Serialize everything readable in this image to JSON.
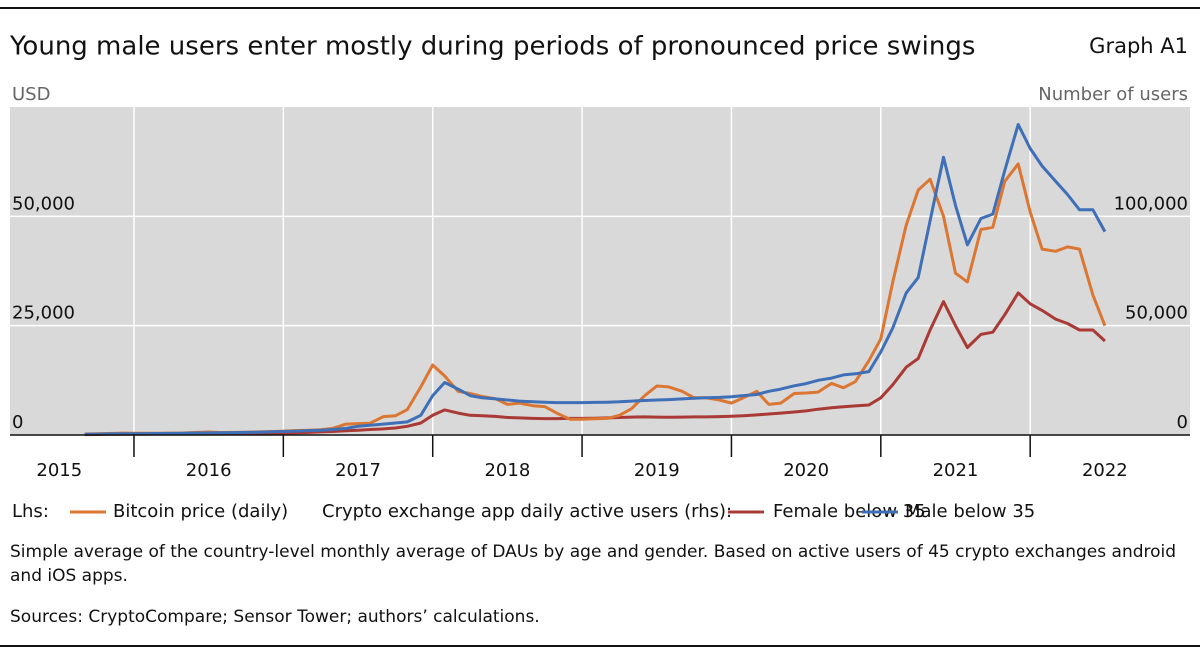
{
  "chart_data": {
    "type": "line",
    "title": "Young male users enter mostly during periods of pronounced price swings",
    "graph_label": "Graph A1",
    "y_label": "USD",
    "y2_label": "Number of users",
    "legend_lhs_label": "Lhs:",
    "legend_rhs_label": "Crypto exchange app daily active users (rhs):",
    "note": "Simple average of the country-level monthly average of DAUs by age and gender. Based on active users of 45 crypto exchanges android and iOS apps.",
    "sources": "Sources: CryptoCompare; Sensor Tower; authors’ calculations.",
    "x": [
      2015.67,
      2015.75,
      2015.83,
      2015.92,
      2016.0,
      2016.08,
      2016.17,
      2016.25,
      2016.33,
      2016.42,
      2016.5,
      2016.58,
      2016.67,
      2016.75,
      2016.83,
      2016.92,
      2017.0,
      2017.08,
      2017.17,
      2017.25,
      2017.33,
      2017.42,
      2017.5,
      2017.58,
      2017.67,
      2017.75,
      2017.83,
      2017.92,
      2018.0,
      2018.08,
      2018.17,
      2018.25,
      2018.33,
      2018.42,
      2018.5,
      2018.58,
      2018.67,
      2018.75,
      2018.83,
      2018.92,
      2019.0,
      2019.08,
      2019.17,
      2019.25,
      2019.33,
      2019.42,
      2019.5,
      2019.58,
      2019.67,
      2019.75,
      2019.83,
      2019.92,
      2020.0,
      2020.08,
      2020.17,
      2020.25,
      2020.33,
      2020.42,
      2020.5,
      2020.58,
      2020.67,
      2020.75,
      2020.83,
      2020.92,
      2021.0,
      2021.08,
      2021.17,
      2021.25,
      2021.33,
      2021.42,
      2021.5,
      2021.58,
      2021.67,
      2021.75,
      2021.83,
      2021.92,
      2022.0,
      2022.08,
      2022.17,
      2022.25,
      2022.33,
      2022.42,
      2022.5
    ],
    "xlim": [
      2015.17,
      2023.07
    ],
    "xticks": [
      {
        "value": 2015.5,
        "label": "2015"
      },
      {
        "value": 2016.5,
        "label": "2016"
      },
      {
        "value": 2017.5,
        "label": "2017"
      },
      {
        "value": 2018.5,
        "label": "2018"
      },
      {
        "value": 2019.5,
        "label": "2019"
      },
      {
        "value": 2020.5,
        "label": "2020"
      },
      {
        "value": 2021.5,
        "label": "2021"
      },
      {
        "value": 2022.5,
        "label": "2022"
      }
    ],
    "xgrid": [
      2016,
      2017,
      2018,
      2019,
      2020,
      2021,
      2022
    ],
    "ylim": [
      0,
      75000
    ],
    "yticks": [
      0,
      {
        "value": 25000,
        "label": "25,000"
      },
      {
        "value": 50000,
        "label": "50,000"
      }
    ],
    "y2lim": [
      0,
      150000
    ],
    "y2ticks": [
      0,
      {
        "value": 50000,
        "label": "50,000"
      },
      {
        "value": 100000,
        "label": "100,000"
      }
    ],
    "grid": true,
    "series": [
      {
        "name": "Bitcoin price (daily)",
        "color": "#dc7633",
        "values": [
          230,
          270,
          350,
          430,
          410,
          400,
          410,
          430,
          450,
          600,
          680,
          580,
          600,
          640,
          710,
          780,
          900,
          1000,
          1100,
          1200,
          1500,
          2500,
          2600,
          2700,
          4200,
          4400,
          5800,
          11000,
          16000,
          13500,
          10000,
          9500,
          8800,
          8300,
          7000,
          7300,
          6700,
          6500,
          5000,
          3600,
          3600,
          3700,
          3800,
          4500,
          6000,
          9000,
          11200,
          11000,
          10000,
          8500,
          8500,
          8000,
          7300,
          8500,
          10000,
          7000,
          7300,
          9500,
          9600,
          9800,
          11800,
          10800,
          12200,
          17000,
          22000,
          35000,
          48000,
          56000,
          58500,
          50000,
          37000,
          35000,
          47000,
          47500,
          58000,
          62000,
          51000,
          42500,
          42000,
          43000,
          42500,
          32000,
          25000
        ]
      },
      {
        "name": "Female below 35",
        "color": "#a93a36",
        "axis": "y2",
        "values": [
          200,
          250,
          300,
          350,
          400,
          420,
          450,
          480,
          500,
          550,
          580,
          600,
          650,
          700,
          750,
          800,
          900,
          1000,
          1200,
          1400,
          1600,
          1900,
          2200,
          2500,
          2800,
          3200,
          4000,
          5500,
          9000,
          11500,
          10000,
          9000,
          8800,
          8500,
          8000,
          7800,
          7600,
          7500,
          7500,
          7600,
          7600,
          7700,
          7800,
          8000,
          8200,
          8300,
          8200,
          8100,
          8200,
          8300,
          8300,
          8400,
          8600,
          8800,
          9200,
          9600,
          10000,
          10500,
          11000,
          11800,
          12500,
          12900,
          13300,
          13700,
          17000,
          23000,
          31000,
          35000,
          48000,
          61000,
          50000,
          40000,
          46000,
          47000,
          55000,
          65000,
          60000,
          57000,
          53000,
          51000,
          48000,
          48000,
          43000
        ]
      },
      {
        "name": "Male below 35",
        "color": "#3f6fb6",
        "axis": "y2",
        "values": [
          300,
          400,
          500,
          550,
          600,
          650,
          700,
          750,
          800,
          900,
          950,
          1000,
          1100,
          1200,
          1300,
          1500,
          1600,
          1800,
          2000,
          2200,
          2500,
          3000,
          4000,
          4500,
          5000,
          5500,
          6000,
          9000,
          18000,
          24000,
          21000,
          18000,
          17000,
          16500,
          16000,
          15500,
          15200,
          15000,
          14800,
          14800,
          14800,
          14900,
          15000,
          15200,
          15500,
          15800,
          16000,
          16200,
          16500,
          16800,
          17000,
          17200,
          17500,
          18000,
          18500,
          20000,
          21000,
          22500,
          23500,
          25000,
          26000,
          27500,
          28000,
          29000,
          38000,
          49000,
          65000,
          72000,
          98000,
          127000,
          105000,
          87000,
          99000,
          101000,
          121000,
          142000,
          131000,
          123000,
          116000,
          110000,
          103000,
          103000,
          93000
        ]
      }
    ]
  }
}
